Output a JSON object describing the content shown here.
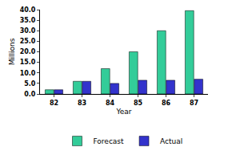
{
  "chart_data": {
    "type": "bar",
    "x_label": "Year",
    "y_label": "Millions",
    "categories": [
      "82",
      "83",
      "84",
      "85",
      "86",
      "87"
    ],
    "series": [
      {
        "name": "Forecast",
        "color": "#33cc99",
        "values": [
          2,
          6,
          12,
          20,
          30,
          39.5
        ]
      },
      {
        "name": "Actual",
        "color": "#3333cc",
        "values": [
          2,
          6,
          5,
          6.5,
          6.5,
          7
        ]
      }
    ],
    "ylim": [
      0,
      40
    ],
    "yticks": [
      {
        "value": 0,
        "label": "0.0"
      },
      {
        "value": 5,
        "label": "5.0"
      },
      {
        "value": 10,
        "label": "10.0"
      },
      {
        "value": 15,
        "label": "15.0"
      },
      {
        "value": 20,
        "label": "20.0"
      },
      {
        "value": 25,
        "label": "25.0"
      },
      {
        "value": 30,
        "label": "30.0"
      },
      {
        "value": 35,
        "label": "35.0"
      },
      {
        "value": 40,
        "label": "40.0"
      }
    ],
    "grid": false,
    "legend": "bottom"
  }
}
